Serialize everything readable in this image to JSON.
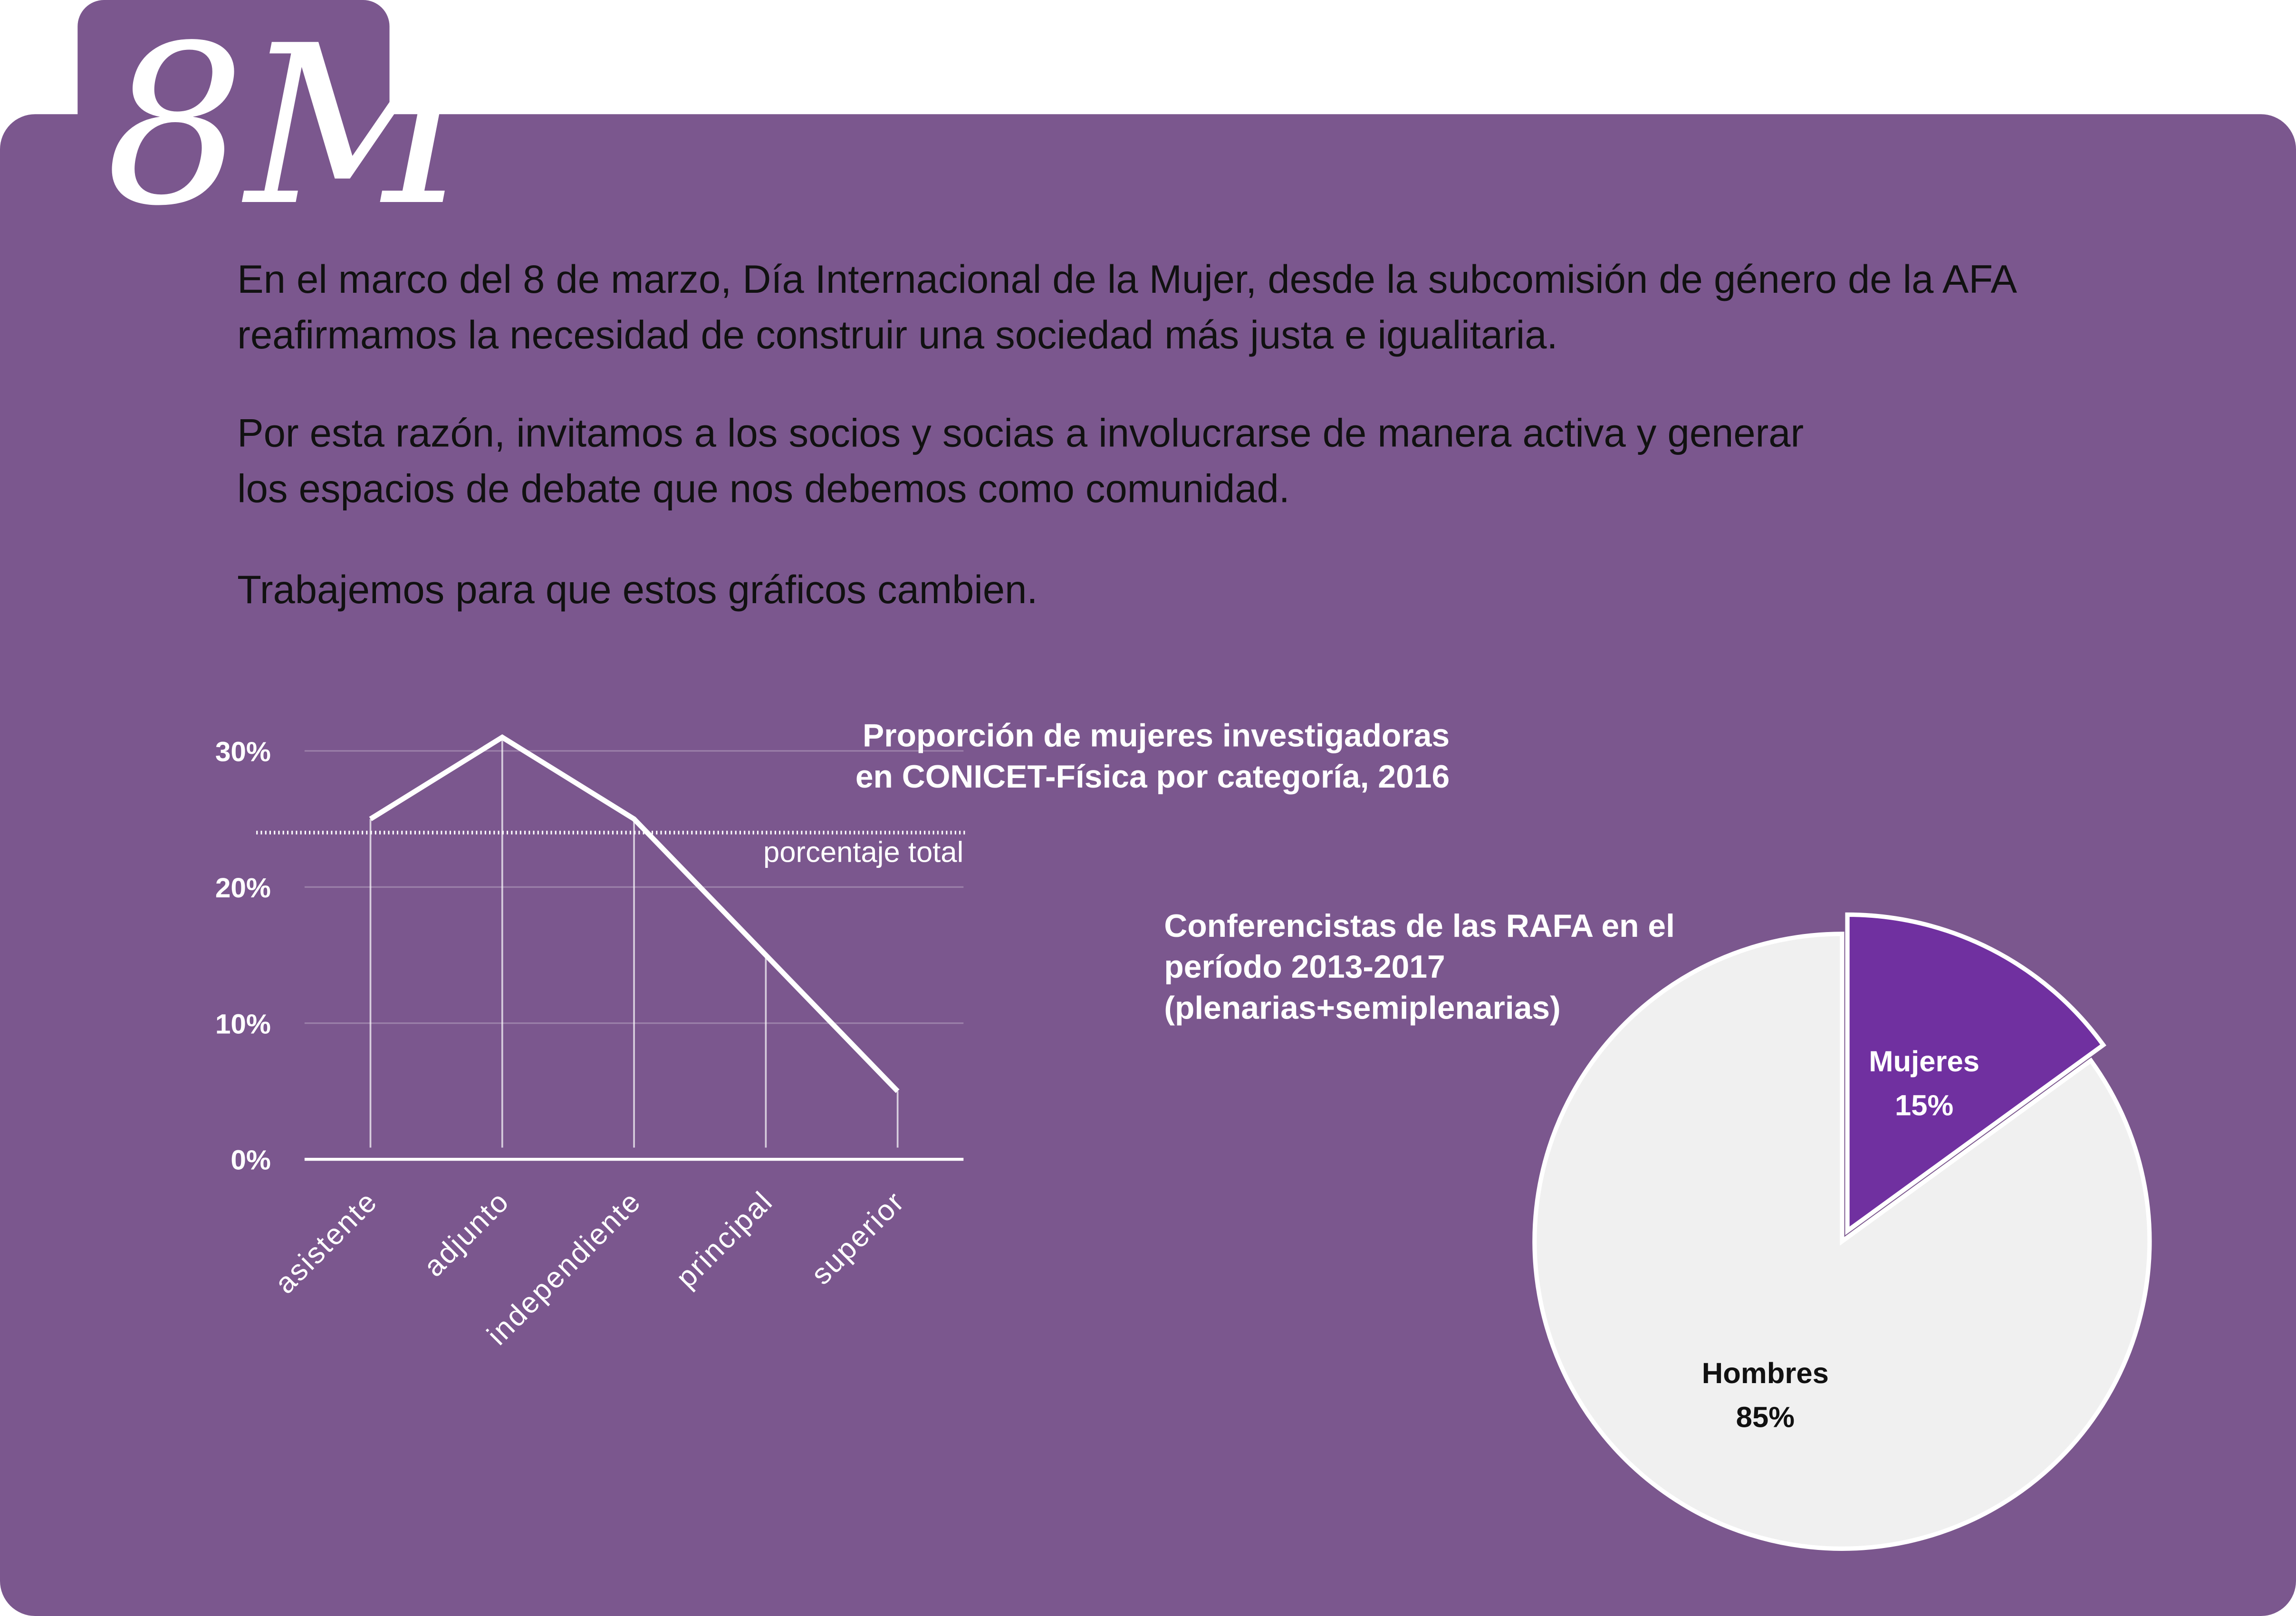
{
  "header": {
    "title": "8M"
  },
  "paragraphs": [
    [
      "En el marco del 8 de marzo, Día Internacional de la Mujer, desde la subcomisión de género de la AFA",
      "reafirmamos la necesidad de construir una sociedad más justa e igualitaria."
    ],
    [
      "Por esta razón, invitamos a los socios y socias a involucrarse de manera activa y generar",
      "los espacios de debate que nos debemos como comunidad."
    ],
    [
      "Trabajemos para que estos gráficos cambien."
    ]
  ],
  "chart_data": [
    {
      "type": "line",
      "title": [
        "Proporción de mujeres investigadoras",
        "en CONICET-Física por categoría, 2016"
      ],
      "categories": [
        "asistente",
        "adjunto",
        "independiente",
        "principal",
        "superior"
      ],
      "values": [
        25,
        31,
        25,
        15,
        5
      ],
      "color": "#ffffff",
      "ylim": [
        0,
        32
      ],
      "yticks": [
        {
          "value": 0,
          "label": "0%"
        },
        {
          "value": 10,
          "label": "10%"
        },
        {
          "value": 20,
          "label": "20%"
        },
        {
          "value": 30,
          "label": "30%"
        }
      ],
      "grid": true,
      "reference_line": {
        "value": 24,
        "label": "porcentaje total"
      }
    },
    {
      "type": "pie",
      "title": [
        "Conferencistas de las RAFA en el",
        "período 2013-2017",
        "(plenarias+semiplenarias)"
      ],
      "categories": [
        "Mujeres",
        "Hombres"
      ],
      "values": [
        15,
        85
      ],
      "value_labels": [
        "15%",
        "85%"
      ],
      "colors": [
        "#7030a0",
        "#f0f0f0"
      ]
    }
  ]
}
